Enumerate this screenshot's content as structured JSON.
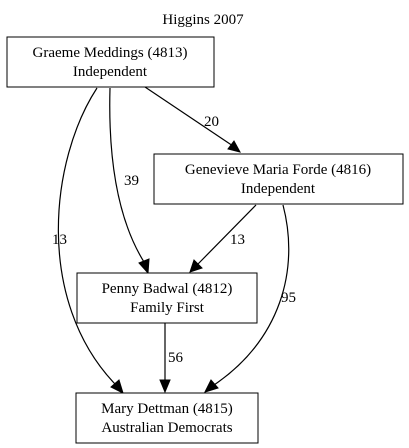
{
  "title": "Higgins 2007",
  "nodes": {
    "meddings": {
      "name": "Graeme Meddings (4813)",
      "party": "Independent"
    },
    "forde": {
      "name": "Genevieve Maria Forde (4816)",
      "party": "Independent"
    },
    "badwal": {
      "name": "Penny Badwal (4812)",
      "party": "Family First"
    },
    "dettman": {
      "name": "Mary Dettman (4815)",
      "party": "Australian Democrats"
    }
  },
  "edges": {
    "meddings_forde": {
      "from": "Graeme Meddings (4813)",
      "to": "Genevieve Maria Forde (4816)",
      "label": "20"
    },
    "meddings_badwal": {
      "from": "Graeme Meddings (4813)",
      "to": "Penny Badwal (4812)",
      "label": "39"
    },
    "meddings_dettman": {
      "from": "Graeme Meddings (4813)",
      "to": "Mary Dettman (4815)",
      "label": "13"
    },
    "forde_badwal": {
      "from": "Genevieve Maria Forde (4816)",
      "to": "Penny Badwal (4812)",
      "label": "13"
    },
    "forde_dettman": {
      "from": "Genevieve Maria Forde (4816)",
      "to": "Mary Dettman (4815)",
      "label": "95"
    },
    "badwal_dettman": {
      "from": "Penny Badwal (4812)",
      "to": "Mary Dettman (4815)",
      "label": "56"
    }
  }
}
